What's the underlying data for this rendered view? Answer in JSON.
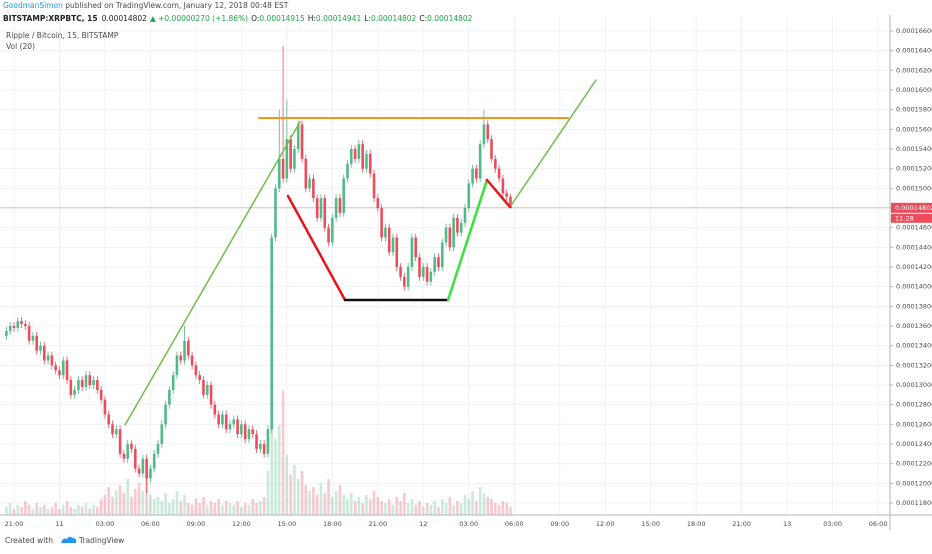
{
  "header": {
    "author": "GoodmanSimon",
    "published": " published on TradingView.com, January 12, 2018 00:48 EST",
    "symbol": "BITSTAMP:XRPBTC, 15",
    "last": "0.00014802",
    "change": "▲ +0.00000270 (+1.86%)",
    "ohlc": [
      {
        "label": "O:",
        "value": "0.00014915"
      },
      {
        "label": "H:",
        "value": "0.00014941"
      },
      {
        "label": "L:",
        "value": "0.00014802"
      },
      {
        "label": "C:",
        "value": "0.00014802"
      }
    ]
  },
  "chart_data": {
    "type": "candlestick",
    "title": "Ripple / Bitcoin, 15, BITSTAMP",
    "indicator": "Vol (20)",
    "countdown": "11:28",
    "x_labels": [
      "21:00",
      "11",
      "03:00",
      "06:00",
      "09:00",
      "12:00",
      "15:00",
      "18:00",
      "21:00",
      "12",
      "03:00",
      "06:00",
      "09:00",
      "12:00",
      "15:00",
      "18:00",
      "21:00",
      "13",
      "03:00",
      "06:00"
    ],
    "open": [
      0.000135,
      0.0001355,
      0.000136,
      0.0001358,
      0.0001365,
      0.0001362,
      0.000136,
      0.0001345,
      0.000135,
      0.0001335,
      0.000134,
      0.0001325,
      0.000133,
      0.000132,
      0.0001315,
      0.000131,
      0.0001325,
      0.0001305,
      0.000129,
      0.0001295,
      0.0001305,
      0.0001298,
      0.000131,
      0.00013,
      0.0001305,
      0.0001295,
      0.0001285,
      0.000127,
      0.000126,
      0.000125,
      0.0001255,
      0.000123,
      0.0001225,
      0.000124,
      0.0001235,
      0.0001215,
      0.000121,
      0.0001225,
      0.0001205,
      0.0001215,
      0.000123,
      0.000124,
      0.000126,
      0.000128,
      0.0001295,
      0.000131,
      0.000133,
      0.0001325,
      0.0001345,
      0.000133,
      0.000132,
      0.000131,
      0.0001305,
      0.000129,
      0.00013,
      0.000128,
      0.000127,
      0.000126,
      0.000127,
      0.0001255,
      0.000126,
      0.0001265,
      0.000125,
      0.000126,
      0.0001245,
      0.0001255,
      0.000125,
      0.0001235,
      0.000124,
      0.000123,
      0.0001255,
      0.000145,
      0.00015,
      0.000153,
      0.000151,
      0.000155,
      0.000152,
      0.000154,
      0.0001565,
      0.000153,
      0.00015,
      0.000151,
      0.000149,
      0.000147,
      0.000149,
      0.000146,
      0.0001445,
      0.000147,
      0.000149,
      0.0001475,
      0.000151,
      0.0001525,
      0.000154,
      0.000153,
      0.0001545,
      0.000152,
      0.0001535,
      0.0001515,
      0.000149,
      0.000148,
      0.000145,
      0.000146,
      0.0001435,
      0.000145,
      0.000142,
      0.000141,
      0.00014,
      0.000142,
      0.000145,
      0.000143,
      0.000141,
      0.000142,
      0.0001405,
      0.0001415,
      0.000143,
      0.000142,
      0.0001445,
      0.000146,
      0.000144,
      0.000147,
      0.0001455,
      0.0001465,
      0.000148,
      0.0001505,
      0.000152,
      0.000151,
      0.0001545,
      0.0001565,
      0.000155,
      0.000153,
      0.000152,
      0.000151,
      0.0001495,
      0.00014915
    ],
    "high": [
      0.0001359,
      0.0001364,
      0.0001364,
      0.0001369,
      0.0001369,
      0.0001366,
      0.0001364,
      0.0001354,
      0.0001354,
      0.0001344,
      0.0001344,
      0.0001334,
      0.0001334,
      0.0001324,
      0.0001319,
      0.0001329,
      0.0001329,
      0.0001309,
      0.0001299,
      0.0001309,
      0.0001309,
      0.0001314,
      0.0001314,
      0.0001309,
      0.0001309,
      0.0001299,
      0.0001289,
      0.0001274,
      0.0001264,
      0.0001259,
      0.0001259,
      0.0001234,
      0.0001244,
      0.0001244,
      0.0001239,
      0.0001219,
      0.0001229,
      0.0001229,
      0.0001219,
      0.0001234,
      0.0001244,
      0.0001264,
      0.0001284,
      0.0001299,
      0.0001314,
      0.0001334,
      0.0001334,
      0.000136,
      0.0001349,
      0.0001334,
      0.0001324,
      0.0001314,
      0.0001309,
      0.0001304,
      0.0001304,
      0.0001284,
      0.0001274,
      0.0001274,
      0.0001274,
      0.0001264,
      0.0001269,
      0.0001269,
      0.0001264,
      0.0001264,
      0.0001259,
      0.0001259,
      0.0001254,
      0.0001244,
      0.0001244,
      0.0001259,
      0.0001454,
      0.0001504,
      0.000158,
      0.0001645,
      0.000159,
      0.0001554,
      0.0001544,
      0.0001569,
      0.0001569,
      0.0001534,
      0.0001514,
      0.0001514,
      0.0001494,
      0.0001494,
      0.0001494,
      0.0001464,
      0.0001474,
      0.0001494,
      0.0001494,
      0.0001514,
      0.0001529,
      0.0001544,
      0.0001544,
      0.0001549,
      0.0001549,
      0.0001539,
      0.0001539,
      0.0001519,
      0.0001494,
      0.0001484,
      0.0001464,
      0.0001464,
      0.0001454,
      0.0001454,
      0.0001424,
      0.0001414,
      0.0001424,
      0.0001454,
      0.0001454,
      0.0001434,
      0.0001424,
      0.0001424,
      0.0001419,
      0.0001434,
      0.0001434,
      0.0001449,
      0.0001464,
      0.0001464,
      0.0001474,
      0.0001474,
      0.0001469,
      0.0001484,
      0.0001509,
      0.0001524,
      0.0001524,
      0.0001549,
      0.000158,
      0.0001569,
      0.0001554,
      0.0001534,
      0.0001524,
      0.0001514,
      0.0001499,
      0.00014941
    ],
    "low": [
      0.0001346,
      0.0001351,
      0.0001354,
      0.0001354,
      0.0001358,
      0.0001356,
      0.0001341,
      0.0001341,
      0.0001331,
      0.0001331,
      0.0001321,
      0.0001321,
      0.0001316,
      0.0001311,
      0.0001306,
      0.0001306,
      0.0001301,
      0.0001286,
      0.0001286,
      0.0001291,
      0.0001294,
      0.0001294,
      0.0001296,
      0.0001296,
      0.0001291,
      0.0001281,
      0.0001266,
      0.0001256,
      0.0001246,
      0.0001246,
      0.0001226,
      0.0001221,
      0.0001221,
      0.0001231,
      0.0001211,
      0.0001206,
      0.0001206,
      0.000119,
      0.0001201,
      0.0001211,
      0.0001226,
      0.0001236,
      0.0001256,
      0.0001276,
      0.0001291,
      0.0001306,
      0.0001321,
      0.0001321,
      0.0001326,
      0.0001316,
      0.0001306,
      0.0001301,
      0.0001286,
      0.0001286,
      0.0001276,
      0.0001266,
      0.0001256,
      0.0001256,
      0.0001251,
      0.0001251,
      0.0001256,
      0.0001246,
      0.0001246,
      0.0001241,
      0.0001241,
      0.0001246,
      0.0001231,
      0.0001231,
      0.0001226,
      0.0001226,
      0.0001251,
      0.0001446,
      0.0001496,
      0.0001506,
      0.0001506,
      0.0001516,
      0.0001516,
      0.0001536,
      0.0001526,
      0.0001496,
      0.0001496,
      0.0001486,
      0.0001466,
      0.0001466,
      0.0001456,
      0.0001441,
      0.0001441,
      0.0001466,
      0.0001471,
      0.0001471,
      0.0001506,
      0.0001521,
      0.0001526,
      0.0001526,
      0.0001516,
      0.0001516,
      0.0001511,
      0.0001486,
      0.0001476,
      0.0001446,
      0.0001446,
      0.0001431,
      0.0001431,
      0.0001416,
      0.0001406,
      0.0001396,
      0.0001396,
      0.0001416,
      0.0001426,
      0.0001406,
      0.0001406,
      0.0001401,
      0.0001401,
      0.0001411,
      0.0001416,
      0.0001416,
      0.0001441,
      0.0001436,
      0.0001436,
      0.0001451,
      0.0001451,
      0.0001461,
      0.0001476,
      0.0001501,
      0.0001506,
      0.0001506,
      0.0001541,
      0.0001546,
      0.0001526,
      0.0001516,
      0.0001506,
      0.0001491,
      0.00014875,
      0.00014802
    ],
    "close": [
      0.0001355,
      0.000136,
      0.0001358,
      0.0001365,
      0.0001362,
      0.000136,
      0.0001345,
      0.000135,
      0.0001335,
      0.000134,
      0.0001325,
      0.000133,
      0.000132,
      0.0001315,
      0.000131,
      0.0001325,
      0.0001305,
      0.000129,
      0.0001295,
      0.0001305,
      0.0001298,
      0.000131,
      0.00013,
      0.0001305,
      0.0001295,
      0.0001285,
      0.000127,
      0.000126,
      0.000125,
      0.0001255,
      0.000123,
      0.0001225,
      0.000124,
      0.0001235,
      0.0001215,
      0.000121,
      0.0001225,
      0.0001205,
      0.0001215,
      0.000123,
      0.000124,
      0.000126,
      0.000128,
      0.0001295,
      0.000131,
      0.000133,
      0.0001325,
      0.0001345,
      0.000133,
      0.000132,
      0.000131,
      0.0001305,
      0.000129,
      0.00013,
      0.000128,
      0.000127,
      0.000126,
      0.000127,
      0.0001255,
      0.000126,
      0.0001265,
      0.000125,
      0.000126,
      0.0001245,
      0.0001255,
      0.000125,
      0.0001235,
      0.000124,
      0.000123,
      0.0001255,
      0.000145,
      0.00015,
      0.000153,
      0.000151,
      0.000155,
      0.000152,
      0.000154,
      0.0001565,
      0.000153,
      0.00015,
      0.000151,
      0.000149,
      0.000147,
      0.000149,
      0.000146,
      0.0001445,
      0.000147,
      0.000149,
      0.0001475,
      0.000151,
      0.0001525,
      0.000154,
      0.000153,
      0.0001545,
      0.000152,
      0.0001535,
      0.0001515,
      0.000149,
      0.000148,
      0.000145,
      0.000146,
      0.0001435,
      0.000145,
      0.000142,
      0.000141,
      0.00014,
      0.000142,
      0.000145,
      0.000143,
      0.000141,
      0.000142,
      0.0001405,
      0.0001415,
      0.000143,
      0.000142,
      0.0001445,
      0.000146,
      0.000144,
      0.000147,
      0.0001455,
      0.0001465,
      0.000148,
      0.0001505,
      0.000152,
      0.000151,
      0.0001545,
      0.0001565,
      0.000155,
      0.000153,
      0.000152,
      0.000151,
      0.0001495,
      0.00014915,
      0.00014802
    ],
    "volume": [
      4,
      6,
      3,
      5,
      4,
      7,
      5,
      3,
      6,
      4,
      5,
      3,
      4,
      6,
      3,
      5,
      7,
      4,
      3,
      5,
      4,
      6,
      3,
      5,
      4,
      8,
      10,
      14,
      9,
      12,
      15,
      11,
      18,
      9,
      13,
      16,
      12,
      20,
      10,
      8,
      9,
      7,
      11,
      6,
      8,
      12,
      7,
      10,
      6,
      5,
      8,
      6,
      9,
      5,
      7,
      6,
      8,
      5,
      7,
      6,
      5,
      7,
      4,
      6,
      5,
      8,
      6,
      7,
      9,
      22,
      55,
      38,
      45,
      62,
      30,
      20,
      25,
      18,
      22,
      15,
      12,
      14,
      10,
      16,
      11,
      18,
      9,
      12,
      15,
      10,
      8,
      11,
      7,
      9,
      6,
      10,
      8,
      12,
      9,
      7,
      6,
      8,
      5,
      9,
      7,
      11,
      6,
      8,
      5,
      7,
      4,
      6,
      5,
      7,
      4,
      8,
      6,
      9,
      5,
      7,
      6,
      10,
      8,
      12,
      7,
      14,
      11,
      9,
      8,
      6,
      5,
      7,
      6,
      4
    ],
    "up_color": "#53b987",
    "down_color": "#eb4d5c",
    "grid": true,
    "ylim": [
      0.00011678,
      0.00016763
    ],
    "yticks": [
      {
        "value": 0.000118,
        "label": "0.00011800"
      },
      {
        "value": 0.00012,
        "label": "0.00012000"
      },
      {
        "value": 0.000122,
        "label": "0.00012200"
      },
      {
        "value": 0.000124,
        "label": "0.00012400"
      },
      {
        "value": 0.000126,
        "label": "0.00012600"
      },
      {
        "value": 0.000128,
        "label": "0.00012800"
      },
      {
        "value": 0.00013,
        "label": "0.00013000"
      },
      {
        "value": 0.000132,
        "label": "0.00013200"
      },
      {
        "value": 0.000134,
        "label": "0.00013400"
      },
      {
        "value": 0.000136,
        "label": "0.00013600"
      },
      {
        "value": 0.000138,
        "label": "0.00013800"
      },
      {
        "value": 0.00014,
        "label": "0.00014000"
      },
      {
        "value": 0.000142,
        "label": "0.00014200"
      },
      {
        "value": 0.000144,
        "label": "0.00014400"
      },
      {
        "value": 0.000146,
        "label": "0.00014600"
      },
      {
        "value": 0.000148,
        "label": "0.00014800"
      },
      {
        "value": 0.00015,
        "label": "0.00015000"
      },
      {
        "value": 0.000152,
        "label": "0.00015200"
      },
      {
        "value": 0.000154,
        "label": "0.00015400"
      },
      {
        "value": 0.000156,
        "label": "0.00015600"
      },
      {
        "value": 0.000158,
        "label": "0.00015800"
      },
      {
        "value": 0.00016,
        "label": "0.00016000"
      },
      {
        "value": 0.000162,
        "label": "0.00016200"
      },
      {
        "value": 0.000164,
        "label": "0.00016400"
      },
      {
        "value": 0.000166,
        "label": "0.00016600"
      }
    ]
  },
  "footer": {
    "created": "Created with",
    "brand": "TradingView"
  }
}
